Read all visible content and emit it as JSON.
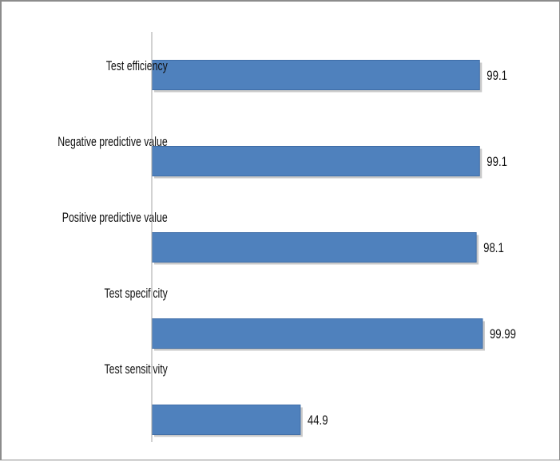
{
  "chart_data": {
    "type": "bar",
    "orientation": "horizontal",
    "categories": [
      "Test efficiency",
      "Negative predictive value",
      "Positive predictive value",
      "Test specificity",
      "Test sensitivity"
    ],
    "values": [
      99.1,
      99.1,
      98.1,
      99.99,
      44.9
    ],
    "value_labels": [
      "99.1",
      "99.1",
      "98.1",
      "99.99",
      "44.9"
    ],
    "xlim": [
      0,
      100
    ],
    "grid": false,
    "legend": "none",
    "colors": {
      "bar": "#4F81BD",
      "bar_edge": "#3F6EA8",
      "shadow": "#C9C9C9",
      "axis": "#a6a6a6"
    }
  }
}
